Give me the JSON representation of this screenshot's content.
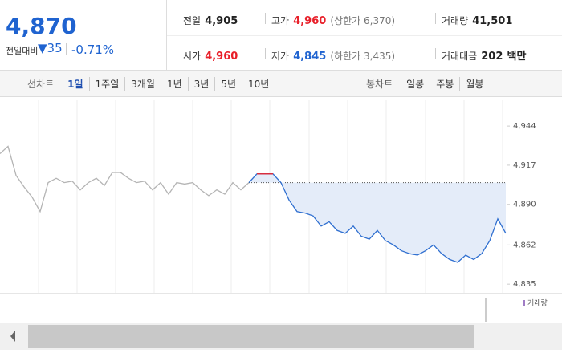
{
  "quote": {
    "price": "4,870",
    "change_label": "전일대비",
    "change": "35",
    "change_rate": "-0.71%"
  },
  "info": [
    {
      "label": "전일",
      "value": "4,905"
    },
    {
      "label": "고가",
      "value": "4,960",
      "note": "(상한가 6,370)"
    },
    {
      "label": "거래량",
      "value": "41,501"
    },
    {
      "label": "시가",
      "value": "4,960"
    },
    {
      "label": "저가",
      "value": "4,845",
      "note": "(하한가 3,435)"
    },
    {
      "label": "거래대금",
      "value": "202",
      "unit": "백만"
    }
  ],
  "tabs": {
    "line_label": "선차트",
    "line": [
      "1일",
      "1주일",
      "3개월",
      "1년",
      "3년",
      "5년",
      "10년"
    ],
    "candle_label": "봉차트",
    "candle": [
      "일봉",
      "주봉",
      "월봉"
    ]
  },
  "chart_data": {
    "type": "line",
    "ylim": [
      4829,
      4959
    ],
    "yticks": [
      {
        "value": 4944,
        "label": "4,944"
      },
      {
        "value": 4917,
        "label": "4,917"
      },
      {
        "value": 4890,
        "label": "4,890"
      },
      {
        "value": 4862,
        "label": "4,862"
      },
      {
        "value": 4835,
        "label": "4,835"
      }
    ],
    "baseline": 4905,
    "above_color": "#e8202a",
    "area_color": "#e4ecf9",
    "volume_legend": "거래량",
    "series": [
      {
        "color": "#b4b4b4",
        "values": [
          4925,
          4930,
          4910,
          4902,
          4895,
          4885,
          4905,
          4908,
          4905,
          4906,
          4900,
          4905,
          4908,
          4903,
          4912,
          4912,
          4908,
          4905,
          4906,
          4900,
          4905,
          4897,
          4905,
          4904,
          4905,
          4900,
          4896,
          4900,
          4897,
          4905,
          4900,
          4905,
          null,
          null,
          null,
          null,
          null,
          null,
          null,
          null,
          null,
          null,
          null,
          null,
          null,
          null,
          null,
          null,
          null,
          null,
          null,
          null,
          null,
          null,
          null,
          null,
          null,
          null,
          null,
          null,
          null,
          null,
          null,
          null
        ]
      },
      {
        "color": "#2f6fd0",
        "values": [
          null,
          null,
          null,
          null,
          null,
          null,
          null,
          null,
          null,
          null,
          null,
          null,
          null,
          null,
          null,
          null,
          null,
          null,
          null,
          null,
          null,
          null,
          null,
          null,
          null,
          null,
          null,
          null,
          null,
          null,
          null,
          4905,
          4911,
          4911,
          4911,
          4905,
          4893,
          4885,
          4884,
          4882,
          4875,
          4878,
          4872,
          4870,
          4875,
          4868,
          4866,
          4872,
          4865,
          4862,
          4858,
          4856,
          4855,
          4858,
          4862,
          4856,
          4852,
          4850,
          4855,
          4852,
          4856,
          4865,
          4880,
          4870
        ]
      }
    ]
  }
}
